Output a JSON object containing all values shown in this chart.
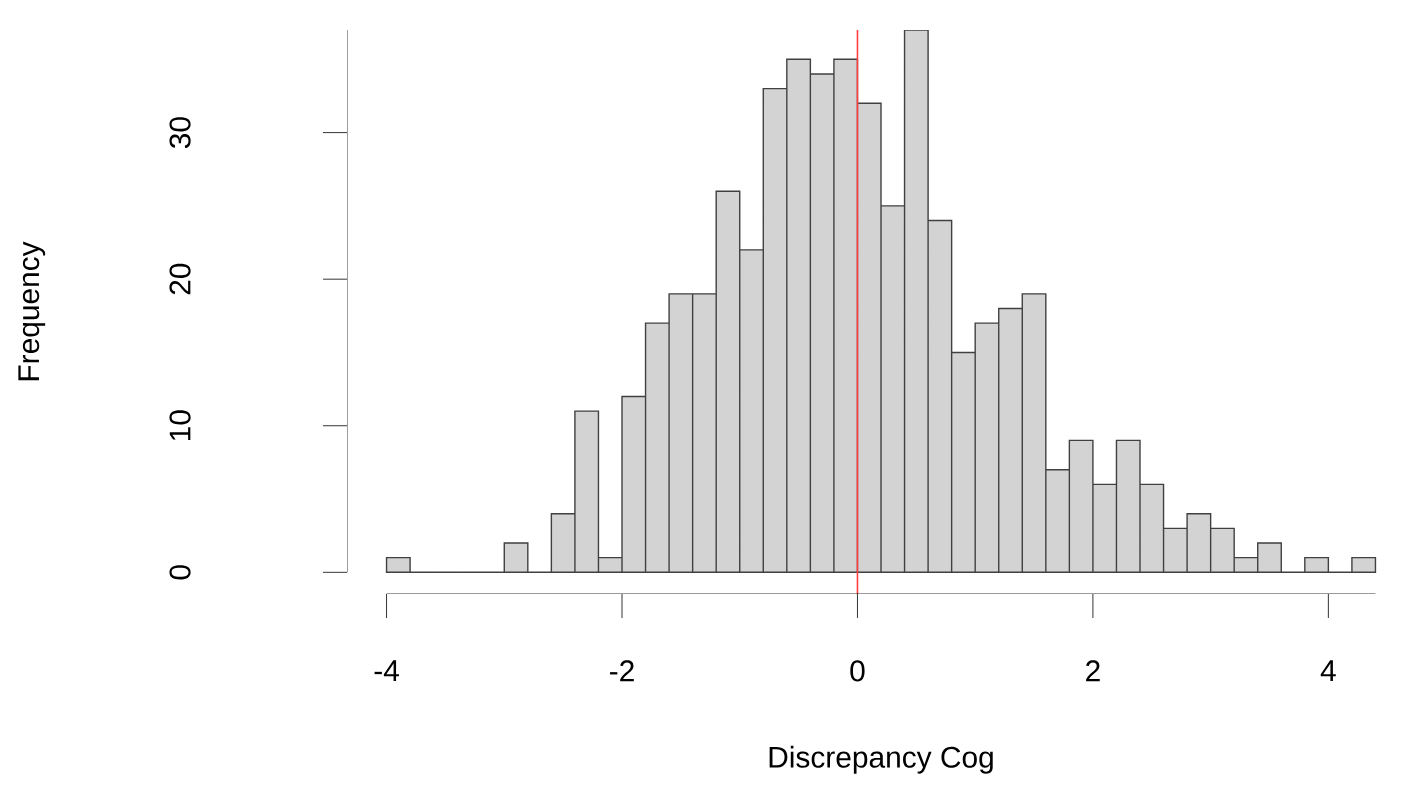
{
  "chart_data": {
    "type": "histogram",
    "xlabel": "Discrepancy Cog",
    "ylabel": "Frequency",
    "bins": [
      -4,
      -3.8,
      -3.6,
      -3.4,
      -3.2,
      -3,
      -2.8,
      -2.6,
      -2.4,
      -2.2,
      -2,
      -1.8,
      -1.6,
      -1.4,
      -1.2,
      -1,
      -0.8,
      -0.6,
      -0.4,
      -0.2,
      0,
      0.2,
      0.4,
      0.6,
      0.8,
      1,
      1.2,
      1.4,
      1.6,
      1.8,
      2,
      2.2,
      2.4,
      2.6,
      2.8,
      3,
      3.2,
      3.4,
      3.6,
      3.8,
      4,
      4.2,
      4.4
    ],
    "values": [
      1,
      0,
      0,
      0,
      0,
      2,
      0,
      4,
      11,
      1,
      12,
      17,
      19,
      19,
      26,
      22,
      33,
      35,
      34,
      35,
      32,
      25,
      37,
      24,
      15,
      17,
      18,
      19,
      7,
      9,
      6,
      9,
      6,
      3,
      4,
      3,
      1,
      2,
      0,
      1,
      0,
      1
    ],
    "color": "#d3d3d3",
    "xticks": [
      -4,
      -2,
      0,
      2,
      4
    ],
    "yticks": [
      0,
      10,
      20,
      30
    ],
    "ref_lines": [
      {
        "axis": "x",
        "value": 0,
        "color": "#ff4040"
      }
    ],
    "xlim": [
      -4,
      4.4
    ],
    "ylim": [
      0,
      37
    ],
    "grid": false
  }
}
